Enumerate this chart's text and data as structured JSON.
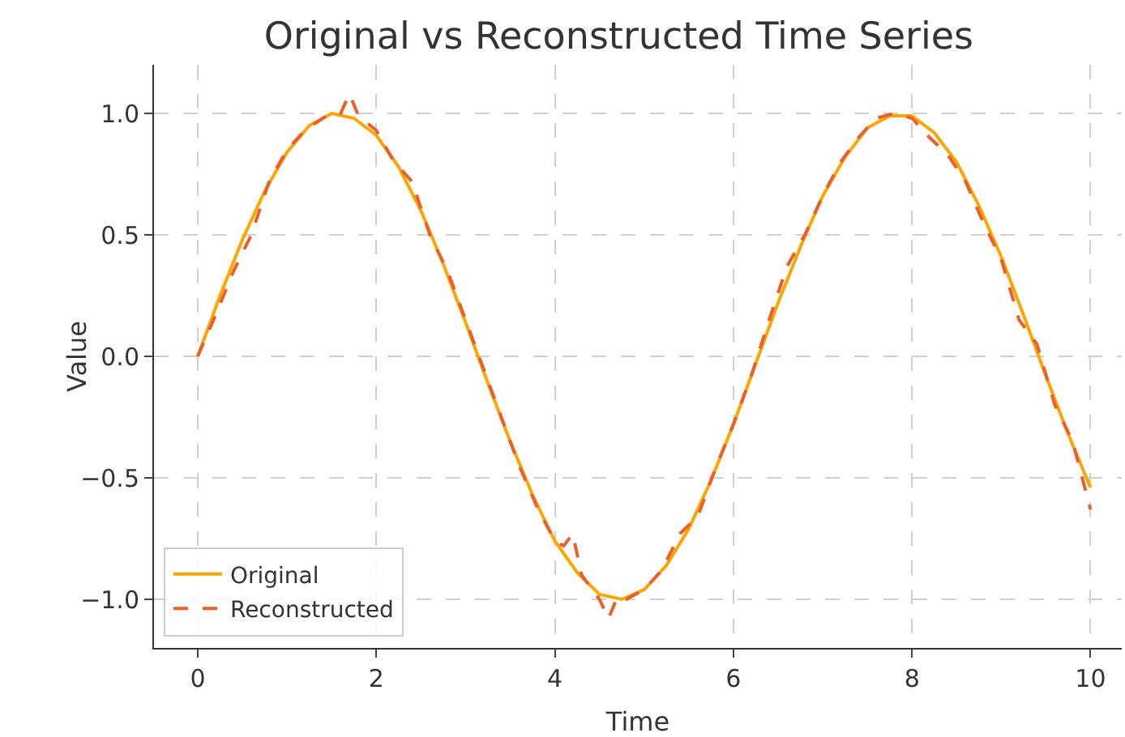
{
  "chart_data": {
    "type": "line",
    "title": "Original vs Reconstructed Time Series",
    "xlabel": "Time",
    "ylabel": "Value",
    "xlim": [
      -0.49,
      10.35
    ],
    "ylim": [
      -1.2,
      1.2
    ],
    "xticks": [
      0,
      2,
      4,
      6,
      8,
      10
    ],
    "yticks": [
      {
        "value": -1,
        "label": "−1.0"
      },
      {
        "value": -0.5,
        "label": "−0.5"
      },
      {
        "value": 0,
        "label": "0.0"
      },
      {
        "value": 0.5,
        "label": "0.5"
      },
      {
        "value": 1,
        "label": "1.0"
      }
    ],
    "grid": true,
    "legend": "bottom left",
    "marker": "none",
    "series": [
      {
        "name": "Original",
        "color": "#ffa500",
        "line_style": "solid",
        "x": [
          0,
          0.25,
          0.5,
          0.75,
          1,
          1.25,
          1.5,
          1.75,
          2,
          2.25,
          2.5,
          2.75,
          3,
          3.25,
          3.5,
          3.75,
          4,
          4.25,
          4.5,
          4.75,
          5,
          5.25,
          5.5,
          5.75,
          6,
          6.25,
          6.5,
          6.75,
          7,
          7.25,
          7.5,
          7.75,
          8,
          8.25,
          8.5,
          8.75,
          9,
          9.25,
          9.5,
          9.75,
          10
        ],
        "values": [
          0,
          0.25,
          0.48,
          0.68,
          0.84,
          0.95,
          1.0,
          0.98,
          0.91,
          0.78,
          0.6,
          0.38,
          0.14,
          -0.11,
          -0.35,
          -0.57,
          -0.76,
          -0.89,
          -0.98,
          -1.0,
          -0.96,
          -0.86,
          -0.71,
          -0.51,
          -0.28,
          -0.03,
          0.22,
          0.45,
          0.66,
          0.82,
          0.94,
          0.99,
          0.99,
          0.92,
          0.8,
          0.62,
          0.41,
          0.17,
          -0.08,
          -0.32,
          -0.54
        ]
      },
      {
        "name": "Reconstructed",
        "color": "#e8602c",
        "line_style": "dashed",
        "x": [
          0,
          0.2,
          0.4,
          0.6,
          0.8,
          1,
          1.2,
          1.4,
          1.5,
          1.6,
          1.7,
          1.8,
          2,
          2.2,
          2.4,
          2.6,
          2.8,
          3,
          3.2,
          3.4,
          3.6,
          3.8,
          4,
          4.1,
          4.2,
          4.3,
          4.4,
          4.5,
          4.6,
          4.7,
          4.8,
          5,
          5.2,
          5.4,
          5.6,
          5.8,
          6,
          6.2,
          6.4,
          6.6,
          6.8,
          7,
          7.2,
          7.4,
          7.6,
          7.8,
          8,
          8.2,
          8.4,
          8.6,
          8.8,
          9,
          9.2,
          9.4,
          9.6,
          9.8,
          10
        ],
        "values": [
          0,
          0.17,
          0.35,
          0.5,
          0.72,
          0.85,
          0.93,
          0.98,
          1.0,
          1.0,
          1.08,
          0.99,
          0.93,
          0.8,
          0.72,
          0.5,
          0.35,
          0.15,
          -0.05,
          -0.25,
          -0.45,
          -0.62,
          -0.76,
          -0.78,
          -0.73,
          -0.9,
          -0.95,
          -1.0,
          -1.08,
          -0.99,
          -1.0,
          -0.96,
          -0.88,
          -0.73,
          -0.66,
          -0.46,
          -0.28,
          -0.08,
          0.15,
          0.37,
          0.5,
          0.66,
          0.8,
          0.9,
          0.98,
          1.0,
          0.98,
          0.9,
          0.83,
          0.72,
          0.55,
          0.4,
          0.15,
          0.05,
          -0.2,
          -0.35,
          -0.63
        ]
      }
    ]
  }
}
